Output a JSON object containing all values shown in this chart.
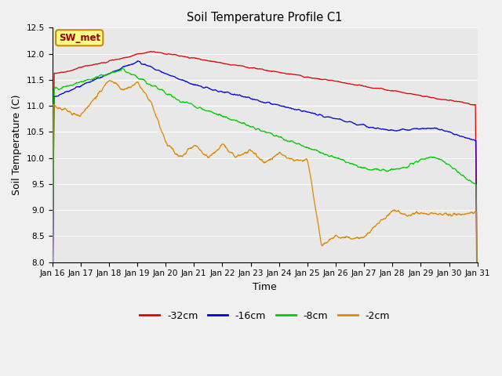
{
  "title": "Soil Temperature Profile C1",
  "xlabel": "Time",
  "ylabel": "Soil Temperature (C)",
  "ylim": [
    8.0,
    12.5
  ],
  "yticks": [
    8.0,
    8.5,
    9.0,
    9.5,
    10.0,
    10.5,
    11.0,
    11.5,
    12.0,
    12.5
  ],
  "x_labels": [
    "Jan 16",
    "Jan 17",
    "Jan 18",
    "Jan 19",
    "Jan 20",
    "Jan 21",
    "Jan 22",
    "Jan 23",
    "Jan 24",
    "Jan 25",
    "Jan 26",
    "Jan 27",
    "Jan 28",
    "Jan 29",
    "Jan 30",
    "Jan 31"
  ],
  "colors": {
    "-32cm": "#dd0000",
    "-16cm": "#0000dd",
    "-8cm": "#00cc00",
    "-2cm": "#dd8800"
  },
  "legend_label": "SW_met",
  "background_color": "#f0f0f0",
  "plot_bg_color": "#e8e8e8",
  "figsize": [
    6.4,
    4.8
  ],
  "dpi": 100
}
